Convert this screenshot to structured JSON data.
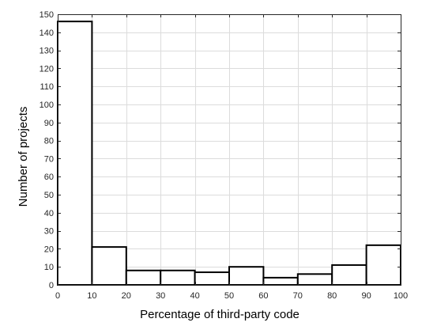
{
  "chart_data": {
    "type": "bar",
    "subtype": "histogram",
    "xlabel": "Percentage of third-party code",
    "ylabel": "Number of projects",
    "xlim": [
      0,
      100
    ],
    "ylim": [
      0,
      150
    ],
    "xticks": [
      0,
      10,
      20,
      30,
      40,
      50,
      60,
      70,
      80,
      90,
      100
    ],
    "yticks": [
      0,
      10,
      20,
      30,
      40,
      50,
      60,
      70,
      80,
      90,
      100,
      110,
      120,
      130,
      140,
      150
    ],
    "bin_edges": [
      0,
      10,
      20,
      30,
      40,
      50,
      60,
      70,
      80,
      90,
      100
    ],
    "values": [
      146,
      21,
      8,
      8,
      7,
      10,
      4,
      6,
      11,
      22
    ],
    "grid": true,
    "bar_fill": "#ffffff",
    "bar_edge": "#000000",
    "grid_color": "#dcdcdc",
    "axis_color": "#262626"
  }
}
